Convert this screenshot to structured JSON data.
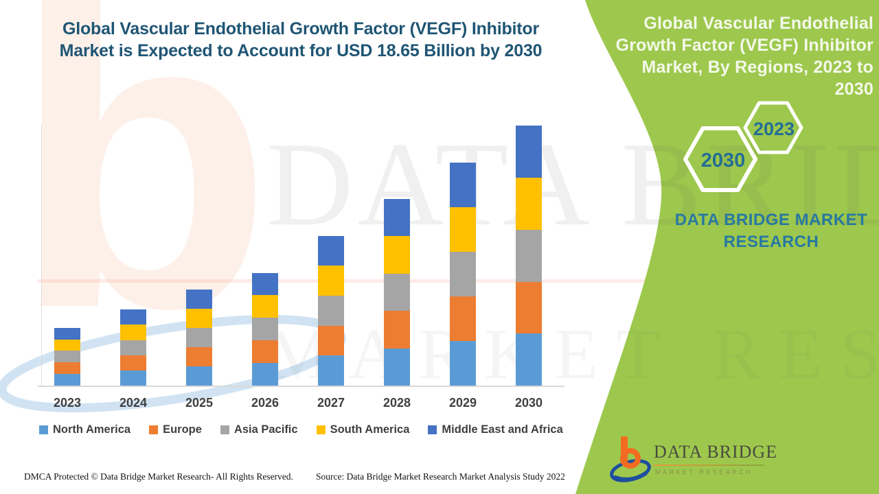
{
  "header": {
    "title_line1": "Global Vascular Endothelial Growth Factor (VEGF) Inhibitor",
    "title_line2": "Market is Expected to Account for USD 18.65 Billion by 2030"
  },
  "side_panel": {
    "title_line1": "Global Vascular Endothelial",
    "title_line2": "Growth Factor (VEGF) Inhibitor",
    "title_line3": "Market, By Regions, 2023 to 2030",
    "hexagons": [
      {
        "label": "2023"
      },
      {
        "label": "2030"
      }
    ],
    "brand_line1": "DATA BRIDGE MARKET",
    "brand_line2": "RESEARCH",
    "background_color": "#9DC84D",
    "accent_teal": "#2878A2"
  },
  "chart_data": {
    "type": "bar",
    "stacked": true,
    "title": "Global Vascular Endothelial Growth Factor (VEGF) Inhibitor Market, By Regions, 2023 to 2030",
    "unit": "USD Billion",
    "categories": [
      "2023",
      "2024",
      "2025",
      "2026",
      "2027",
      "2028",
      "2029",
      "2030"
    ],
    "series": [
      {
        "name": "North America",
        "color": "#5B9BD5",
        "values": [
          0.83,
          1.09,
          1.38,
          1.62,
          2.15,
          2.68,
          3.2,
          3.73
        ]
      },
      {
        "name": "Europe",
        "color": "#ED7D31",
        "values": [
          0.83,
          1.09,
          1.38,
          1.62,
          2.15,
          2.68,
          3.2,
          3.73
        ]
      },
      {
        "name": "Asia Pacific",
        "color": "#A5A5A5",
        "values": [
          0.83,
          1.09,
          1.38,
          1.62,
          2.15,
          2.68,
          3.2,
          3.73
        ]
      },
      {
        "name": "South America",
        "color": "#FFC000",
        "values": [
          0.83,
          1.09,
          1.38,
          1.62,
          2.15,
          2.68,
          3.2,
          3.73
        ]
      },
      {
        "name": "Middle East and Africa",
        "color": "#4472C4",
        "values": [
          0.83,
          1.09,
          1.38,
          1.62,
          2.15,
          2.68,
          3.2,
          3.73
        ]
      }
    ],
    "totals": [
      4.15,
      5.45,
      6.9,
      8.1,
      10.75,
      13.4,
      16.0,
      18.65
    ],
    "highlight_total_2030": "USD 18.65 Billion",
    "ylim": [
      0,
      20
    ],
    "gridlines": false,
    "legend_position": "bottom"
  },
  "footer": {
    "dmca": "DMCA Protected © Data Bridge Market Research- All Rights Reserved.",
    "source": "Source: Data Bridge Market Research Market Analysis Study 2022"
  },
  "logo": {
    "name": "DATA BRIDGE",
    "subtitle": "MARKET RESEARCH"
  },
  "watermark": {
    "line1": "DATA BRIDGE",
    "line2": "MARKET RESEARCH",
    "letter": "b"
  }
}
